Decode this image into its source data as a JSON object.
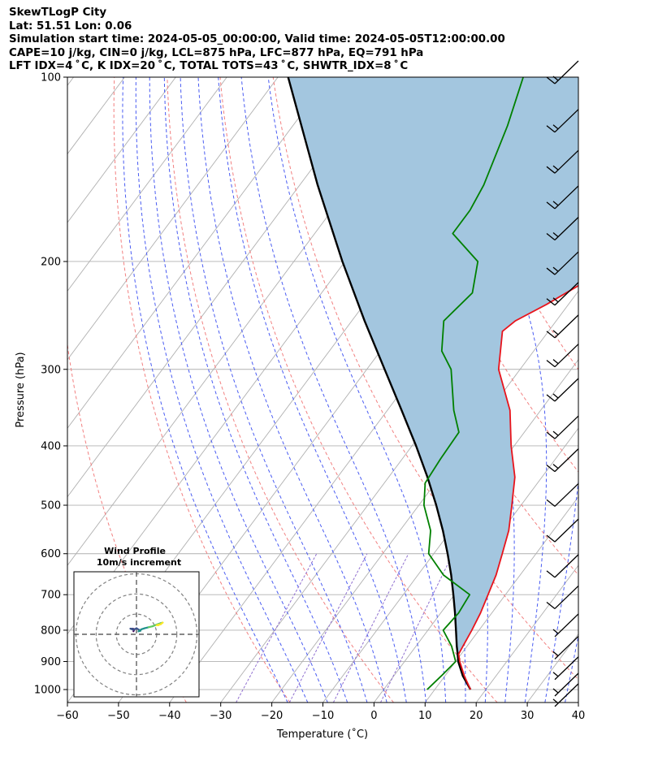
{
  "header": {
    "line1": "SkewTLogP City",
    "line2": "Lat: 51.51   Lon: 0.06",
    "line3": "Simulation start time: 2024-05-05_00:00:00, Valid time: 2024-05-05T12:00:00.00",
    "line4": "CAPE=10 j/kg, CIN=0 j/kg, LCL=875 hPa, LFC=877 hPa, EQ=791 hPa",
    "line5": "LFT IDX=4$^\\circ$C, K IDX=20$^\\circ$C, TOTAL TOTS=43$^\\circ$C, SHWTR_IDX=8$^\\circ$C"
  },
  "header_display": {
    "line5": "LFT IDX=4 ˚ C, K IDX=20 ˚ C, TOTAL TOTS=43 ˚ C, SHWTR_IDX=8 ˚ C"
  },
  "chart_data": {
    "type": "skewt-logp",
    "xlabel": "Temperature (˚C)",
    "ylabel": "Pressure (hPa)",
    "xlim": [
      -60,
      40
    ],
    "ylim": [
      1050,
      100
    ],
    "y_scale": "log",
    "x_ticks": [
      -60,
      -50,
      -40,
      -30,
      -20,
      -10,
      0,
      10,
      20,
      30,
      40
    ],
    "x_tick_labels": [
      "−60",
      "−50",
      "−40",
      "−30",
      "−20",
      "−10",
      "0",
      "10",
      "20",
      "30",
      "40"
    ],
    "y_ticks": [
      100,
      200,
      300,
      400,
      500,
      600,
      700,
      800,
      900,
      1000
    ],
    "grid": true,
    "colors": {
      "temperature": "#e8141c",
      "dewpoint": "#008000",
      "parcel": "#000000",
      "cape_fill": "#a3c6df",
      "dry_adiabat": "#f28080",
      "moist_adiabat": "#4a5cf2",
      "mixing_ratio": "#9070d0",
      "isotherm": "#b0b0b0"
    },
    "series": [
      {
        "points": [
          {
            "p": 1000,
            "t": 17.0
          },
          {
            "p": 950,
            "t": 13.8
          },
          {
            "p": 900,
            "t": 10.8
          },
          {
            "p": 875,
            "t": 9.5
          },
          {
            "p": 850,
            "t": 9.2
          },
          {
            "p": 800,
            "t": 8.6
          },
          {
            "p": 750,
            "t": 7.8
          },
          {
            "p": 700,
            "t": 6.6
          },
          {
            "p": 650,
            "t": 5.3
          },
          {
            "p": 600,
            "t": 3.4
          },
          {
            "p": 550,
            "t": 1.3
          },
          {
            "p": 500,
            "t": -1.8
          },
          {
            "p": 450,
            "t": -5.3
          },
          {
            "p": 400,
            "t": -10.6
          },
          {
            "p": 350,
            "t": -16.0
          },
          {
            "p": 300,
            "t": -24.2
          },
          {
            "p": 260,
            "t": -29.0
          },
          {
            "p": 250,
            "t": -28.0
          },
          {
            "p": 235,
            "t": -24.3
          },
          {
            "p": 220,
            "t": -21.0
          },
          {
            "p": 200,
            "t": -16.8
          },
          {
            "p": 180,
            "t": -13.8
          },
          {
            "p": 165,
            "t": -11.0
          },
          {
            "p": 150,
            "t": -11.5
          },
          {
            "p": 140,
            "t": -12.0
          },
          {
            "p": 130,
            "t": -12.5
          },
          {
            "p": 120,
            "t": -13.5
          },
          {
            "p": 110,
            "t": -14.8
          },
          {
            "p": 100,
            "t": -16.0
          }
        ]
      },
      {
        "points": [
          {
            "p": 1000,
            "t": 8.5
          },
          {
            "p": 950,
            "t": 9.3
          },
          {
            "p": 900,
            "t": 10.0
          },
          {
            "p": 850,
            "t": 7.0
          },
          {
            "p": 800,
            "t": 3.0
          },
          {
            "p": 750,
            "t": 3.5
          },
          {
            "p": 700,
            "t": 3.0
          },
          {
            "p": 650,
            "t": -5.0
          },
          {
            "p": 600,
            "t": -11.0
          },
          {
            "p": 550,
            "t": -14.0
          },
          {
            "p": 500,
            "t": -19.0
          },
          {
            "p": 460,
            "t": -22.0
          },
          {
            "p": 420,
            "t": -22.5
          },
          {
            "p": 380,
            "t": -22.8
          },
          {
            "p": 350,
            "t": -27.0
          },
          {
            "p": 300,
            "t": -33.5
          },
          {
            "p": 280,
            "t": -38.0
          },
          {
            "p": 250,
            "t": -42.0
          },
          {
            "p": 225,
            "t": -40.5
          },
          {
            "p": 200,
            "t": -44.0
          },
          {
            "p": 180,
            "t": -53.0
          },
          {
            "p": 165,
            "t": -53.0
          },
          {
            "p": 150,
            "t": -54.0
          },
          {
            "p": 120,
            "t": -58.0
          },
          {
            "p": 100,
            "t": -62.0
          }
        ]
      },
      {
        "points": [
          {
            "p": 1000,
            "t": 17.0
          },
          {
            "p": 950,
            "t": 13.5
          },
          {
            "p": 900,
            "t": 10.5
          },
          {
            "p": 875,
            "t": 9.3
          },
          {
            "p": 850,
            "t": 8.0
          },
          {
            "p": 800,
            "t": 5.5
          },
          {
            "p": 750,
            "t": 2.8
          },
          {
            "p": 700,
            "t": -0.2
          },
          {
            "p": 650,
            "t": -3.5
          },
          {
            "p": 600,
            "t": -7.3
          },
          {
            "p": 550,
            "t": -11.6
          },
          {
            "p": 500,
            "t": -16.6
          },
          {
            "p": 450,
            "t": -22.4
          },
          {
            "p": 400,
            "t": -29.2
          },
          {
            "p": 350,
            "t": -37.2
          },
          {
            "p": 300,
            "t": -46.5
          },
          {
            "p": 250,
            "t": -57.5
          },
          {
            "p": 200,
            "t": -70.5
          },
          {
            "p": 150,
            "t": -86.5
          },
          {
            "p": 100,
            "t": -108.0
          }
        ]
      }
    ],
    "wind_barbs": [
      {
        "p": 100,
        "speed_kt": 15
      },
      {
        "p": 120,
        "speed_kt": 15
      },
      {
        "p": 140,
        "speed_kt": 15
      },
      {
        "p": 160,
        "speed_kt": 15
      },
      {
        "p": 180,
        "speed_kt": 15
      },
      {
        "p": 205,
        "speed_kt": 15
      },
      {
        "p": 230,
        "speed_kt": 15
      },
      {
        "p": 260,
        "speed_kt": 15
      },
      {
        "p": 290,
        "speed_kt": 15
      },
      {
        "p": 330,
        "speed_kt": 15
      },
      {
        "p": 380,
        "speed_kt": 15
      },
      {
        "p": 430,
        "speed_kt": 15
      },
      {
        "p": 490,
        "speed_kt": 10
      },
      {
        "p": 560,
        "speed_kt": 10
      },
      {
        "p": 640,
        "speed_kt": 10
      },
      {
        "p": 720,
        "speed_kt": 10
      },
      {
        "p": 800,
        "speed_kt": 5
      },
      {
        "p": 870,
        "speed_kt": 5
      },
      {
        "p": 940,
        "speed_kt": 5
      },
      {
        "p": 1000,
        "speed_kt": 5
      },
      {
        "p": 1040,
        "speed_kt": 5
      }
    ],
    "inset": {
      "title_line1": "Wind Profile",
      "title_line2": "10m/s increment",
      "rings": [
        10,
        20,
        30
      ],
      "max_radius": 31,
      "hodograph": [
        {
          "u": -1.5,
          "v": 1.5
        },
        {
          "u": -1.0,
          "v": 2.5
        },
        {
          "u": -2.0,
          "v": 2.8
        },
        {
          "u": -3.0,
          "v": 2.8
        },
        {
          "u": -1.5,
          "v": 2.2
        },
        {
          "u": 0.0,
          "v": 3.0
        },
        {
          "u": 2.0,
          "v": 1.8
        },
        {
          "u": 1.0,
          "v": 1.5
        },
        {
          "u": 2.5,
          "v": 2.5
        },
        {
          "u": 4.0,
          "v": 3.0
        },
        {
          "u": 6.0,
          "v": 3.5
        },
        {
          "u": 8.0,
          "v": 4.0
        },
        {
          "u": 10.0,
          "v": 4.8
        },
        {
          "u": 12.0,
          "v": 5.5
        },
        {
          "u": 13.0,
          "v": 5.8
        },
        {
          "u": 12.0,
          "v": 5.0
        },
        {
          "u": 10.0,
          "v": 4.5
        },
        {
          "u": 11.0,
          "v": 4.5
        }
      ]
    }
  }
}
